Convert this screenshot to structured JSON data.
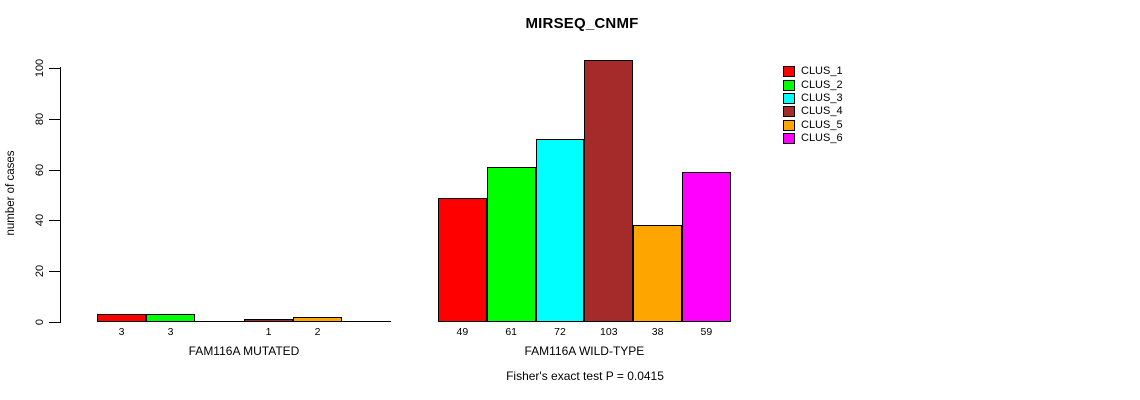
{
  "chart_data": {
    "type": "bar",
    "title": "MIRSEQ_CNMF",
    "ylabel": "number of cases",
    "ylim": [
      0,
      100
    ],
    "yticks": [
      0,
      20,
      40,
      60,
      80,
      100
    ],
    "grid": false,
    "legend_position": "right",
    "series": [
      {
        "name": "CLUS_1",
        "color": "#FF0000"
      },
      {
        "name": "CLUS_2",
        "color": "#00FF00"
      },
      {
        "name": "CLUS_3",
        "color": "#00FFFF"
      },
      {
        "name": "CLUS_4",
        "color": "#A52A2A"
      },
      {
        "name": "CLUS_5",
        "color": "#FFA500"
      },
      {
        "name": "CLUS_6",
        "color": "#FF00FF"
      }
    ],
    "groups": [
      {
        "label": "FAM116A MUTATED",
        "values": [
          3,
          3,
          0,
          1,
          2,
          0
        ]
      },
      {
        "label": "FAM116A WILD-TYPE",
        "values": [
          49,
          61,
          72,
          103,
          38,
          59
        ]
      }
    ],
    "bar_labels_hidden_when_zero": true,
    "annotation": "Fisher's exact test P = 0.0415"
  }
}
